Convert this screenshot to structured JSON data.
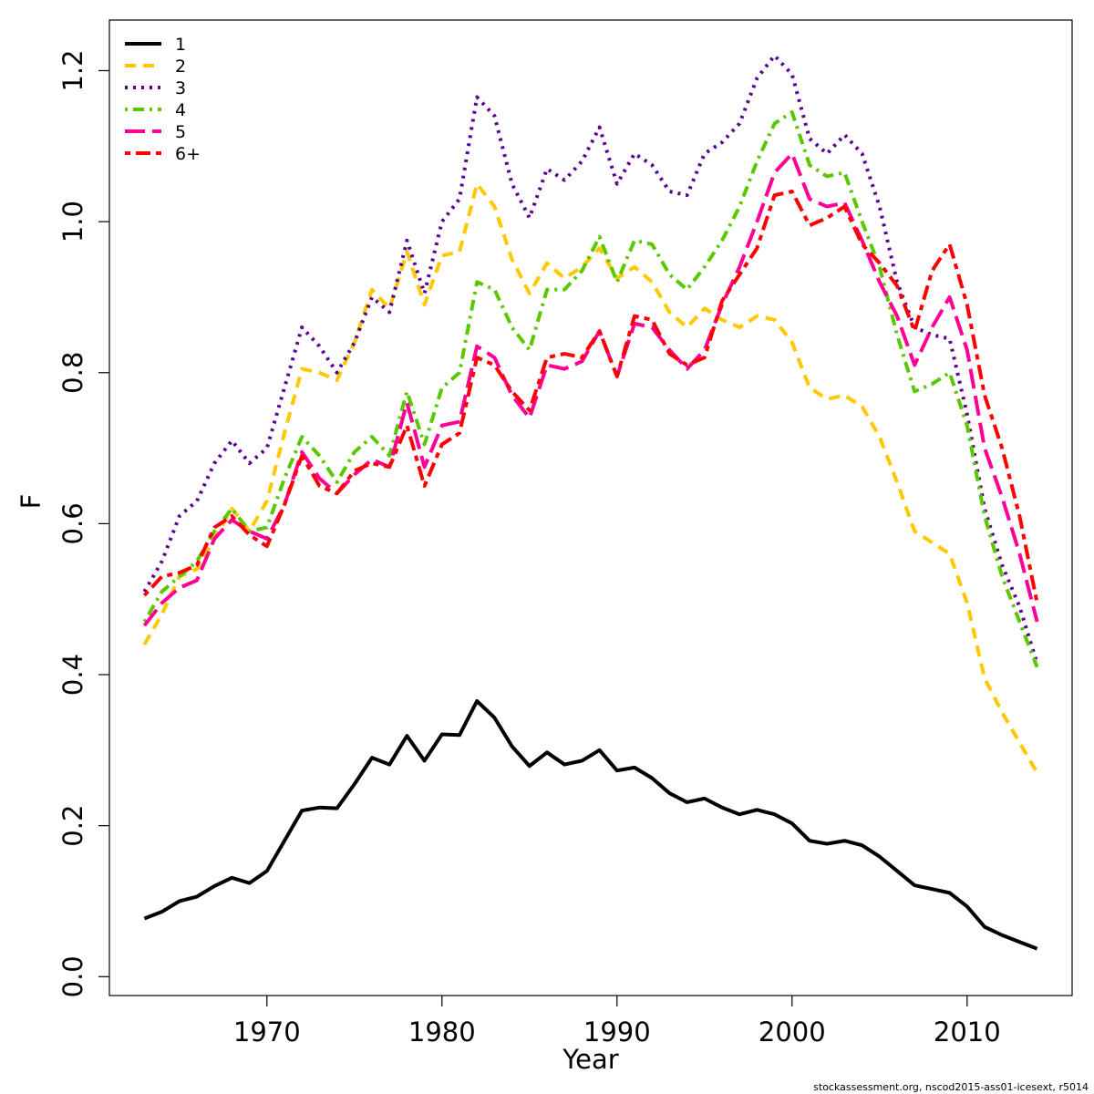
{
  "chart_data": {
    "type": "line",
    "xlabel": "Year",
    "ylabel": "F",
    "caption": "stockassessment.org, nscod2015-ass01-icesext, r5014",
    "xlim": [
      1961,
      2016
    ],
    "ylim": [
      -0.025,
      1.267
    ],
    "xticks": [
      1970,
      1980,
      1990,
      2000,
      2010
    ],
    "yticks": [
      {
        "value": 0,
        "label": "0.0"
      },
      0.2,
      0.4,
      0.6,
      0.8,
      {
        "value": 1,
        "label": "1.0"
      },
      1.2
    ],
    "legend": "top-left",
    "x": [
      1963,
      1964,
      1965,
      1966,
      1967,
      1968,
      1969,
      1970,
      1971,
      1972,
      1973,
      1974,
      1975,
      1976,
      1977,
      1978,
      1979,
      1980,
      1981,
      1982,
      1983,
      1984,
      1985,
      1986,
      1987,
      1988,
      1989,
      1990,
      1991,
      1992,
      1993,
      1994,
      1995,
      1996,
      1997,
      1998,
      1999,
      2000,
      2001,
      2002,
      2003,
      2004,
      2005,
      2006,
      2007,
      2008,
      2009,
      2010,
      2011,
      2012,
      2013,
      2014
    ],
    "series": [
      {
        "name": "1",
        "color": "#000000",
        "dash": "solid",
        "values": [
          0.077,
          0.086,
          0.1,
          0.106,
          0.12,
          0.131,
          0.124,
          0.14,
          0.18,
          0.22,
          0.224,
          0.223,
          0.255,
          0.29,
          0.281,
          0.319,
          0.286,
          0.321,
          0.32,
          0.365,
          0.343,
          0.305,
          0.279,
          0.297,
          0.281,
          0.286,
          0.3,
          0.273,
          0.277,
          0.263,
          0.243,
          0.231,
          0.236,
          0.224,
          0.215,
          0.221,
          0.215,
          0.203,
          0.18,
          0.176,
          0.18,
          0.174,
          0.159,
          0.14,
          0.121,
          0.116,
          0.111,
          0.093,
          0.066,
          0.055,
          0.046,
          0.037
        ]
      },
      {
        "name": "2",
        "color": "#ffc800",
        "dash": "dashed",
        "values": [
          0.44,
          0.48,
          0.53,
          0.54,
          0.58,
          0.62,
          0.59,
          0.63,
          0.72,
          0.805,
          0.8,
          0.79,
          0.84,
          0.91,
          0.885,
          0.96,
          0.89,
          0.955,
          0.96,
          1.05,
          1.02,
          0.95,
          0.905,
          0.945,
          0.925,
          0.94,
          0.965,
          0.925,
          0.94,
          0.92,
          0.88,
          0.86,
          0.885,
          0.87,
          0.86,
          0.875,
          0.87,
          0.84,
          0.78,
          0.765,
          0.77,
          0.755,
          0.715,
          0.655,
          0.59,
          0.575,
          0.56,
          0.495,
          0.395,
          0.35,
          0.31,
          0.27
        ]
      },
      {
        "name": "3",
        "color": "#5c0096",
        "dash": "dotted",
        "values": [
          0.51,
          0.55,
          0.61,
          0.63,
          0.68,
          0.71,
          0.68,
          0.7,
          0.78,
          0.86,
          0.835,
          0.8,
          0.84,
          0.9,
          0.88,
          0.975,
          0.905,
          1.0,
          1.03,
          1.165,
          1.14,
          1.05,
          1.005,
          1.07,
          1.055,
          1.08,
          1.125,
          1.05,
          1.09,
          1.075,
          1.04,
          1.035,
          1.09,
          1.105,
          1.13,
          1.19,
          1.22,
          1.195,
          1.11,
          1.09,
          1.115,
          1.09,
          1.02,
          0.92,
          0.86,
          0.85,
          0.845,
          0.745,
          0.62,
          0.545,
          0.49,
          0.415
        ]
      },
      {
        "name": "4",
        "color": "#5ac800",
        "dash": "dotdash",
        "values": [
          0.47,
          0.51,
          0.53,
          0.55,
          0.59,
          0.62,
          0.59,
          0.595,
          0.66,
          0.715,
          0.69,
          0.655,
          0.695,
          0.715,
          0.69,
          0.775,
          0.705,
          0.78,
          0.8,
          0.92,
          0.91,
          0.86,
          0.83,
          0.91,
          0.91,
          0.935,
          0.98,
          0.92,
          0.975,
          0.97,
          0.93,
          0.91,
          0.94,
          0.975,
          1.02,
          1.08,
          1.13,
          1.145,
          1.075,
          1.06,
          1.065,
          1.0,
          0.94,
          0.85,
          0.775,
          0.785,
          0.8,
          0.73,
          0.61,
          0.53,
          0.47,
          0.41
        ]
      },
      {
        "name": "5",
        "color": "#ff0096",
        "dash": "longdash",
        "values": [
          0.465,
          0.495,
          0.515,
          0.525,
          0.58,
          0.605,
          0.59,
          0.58,
          0.625,
          0.695,
          0.66,
          0.64,
          0.665,
          0.685,
          0.675,
          0.76,
          0.675,
          0.73,
          0.735,
          0.835,
          0.82,
          0.77,
          0.74,
          0.81,
          0.805,
          0.815,
          0.855,
          0.795,
          0.865,
          0.86,
          0.83,
          0.805,
          0.83,
          0.89,
          0.94,
          1.0,
          1.065,
          1.09,
          1.03,
          1.02,
          1.025,
          0.975,
          0.92,
          0.875,
          0.81,
          0.86,
          0.9,
          0.83,
          0.7,
          0.635,
          0.56,
          0.47
        ]
      },
      {
        "name": "6+",
        "color": "#ff0000",
        "dash": "twodash",
        "values": [
          0.505,
          0.53,
          0.535,
          0.545,
          0.595,
          0.61,
          0.585,
          0.57,
          0.625,
          0.69,
          0.65,
          0.64,
          0.67,
          0.68,
          0.675,
          0.73,
          0.65,
          0.705,
          0.72,
          0.82,
          0.81,
          0.775,
          0.75,
          0.82,
          0.825,
          0.82,
          0.855,
          0.795,
          0.875,
          0.87,
          0.825,
          0.81,
          0.82,
          0.895,
          0.93,
          0.965,
          1.035,
          1.04,
          0.995,
          1.005,
          1.02,
          0.97,
          0.945,
          0.915,
          0.855,
          0.935,
          0.97,
          0.89,
          0.77,
          0.7,
          0.61,
          0.495
        ]
      }
    ]
  }
}
